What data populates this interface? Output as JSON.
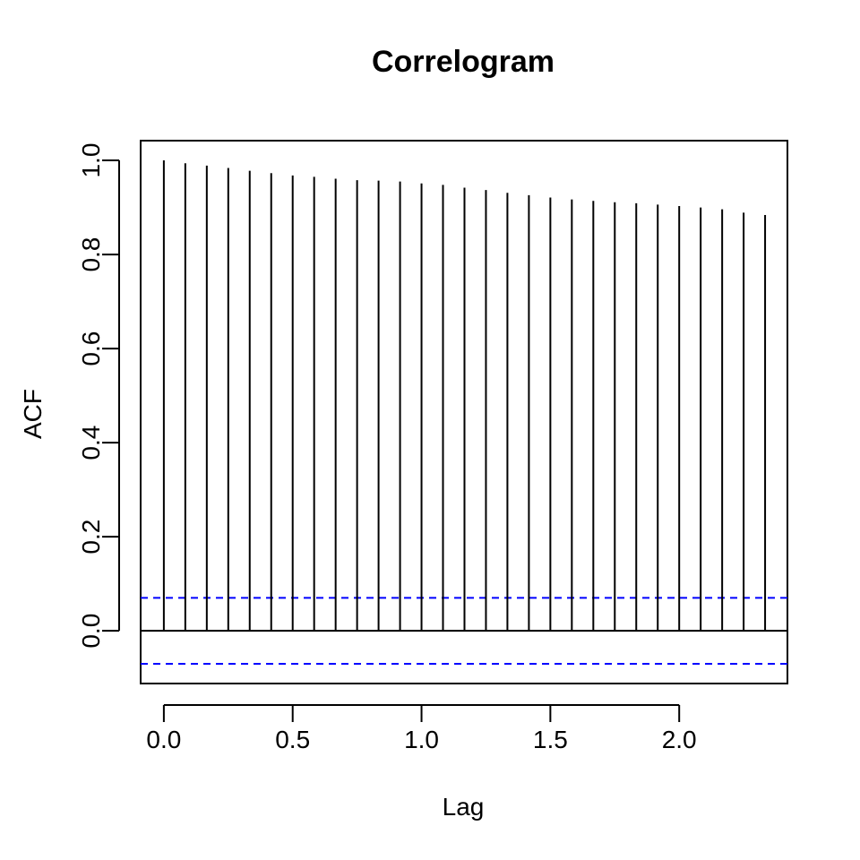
{
  "chart_data": {
    "type": "bar",
    "title": "Correlogram",
    "xlabel": "Lag",
    "ylabel": "ACF",
    "xlim": [
      -0.09,
      2.42
    ],
    "ylim": [
      -0.112,
      1.042
    ],
    "x_ticks": [
      0.0,
      0.5,
      1.0,
      1.5,
      2.0
    ],
    "x_tick_labels": [
      "0.0",
      "0.5",
      "1.0",
      "1.5",
      "2.0"
    ],
    "y_ticks": [
      0.0,
      0.2,
      0.4,
      0.6,
      0.8,
      1.0
    ],
    "y_tick_labels": [
      "0.0",
      "0.2",
      "0.4",
      "0.6",
      "0.8",
      "1.0"
    ],
    "grid": false,
    "spike_color": "#000000",
    "confidence_band_color": "#0000ff",
    "confidence_band": [
      -0.07,
      0.07
    ],
    "series": [
      {
        "x": [
          0.0,
          0.0833,
          0.1667,
          0.25,
          0.3333,
          0.4167,
          0.5,
          0.5833,
          0.6667,
          0.75,
          0.8333,
          0.9167,
          1.0,
          1.0833,
          1.1667,
          1.25,
          1.3333,
          1.4167,
          1.5,
          1.5833,
          1.6667,
          1.75,
          1.8333,
          1.9167,
          2.0,
          2.0833,
          2.1667,
          2.25,
          2.3333
        ],
        "values": [
          1.0,
          0.994,
          0.989,
          0.984,
          0.978,
          0.973,
          0.968,
          0.965,
          0.961,
          0.958,
          0.957,
          0.955,
          0.951,
          0.948,
          0.942,
          0.937,
          0.931,
          0.926,
          0.921,
          0.917,
          0.914,
          0.911,
          0.909,
          0.906,
          0.903,
          0.9,
          0.896,
          0.889,
          0.884
        ]
      }
    ]
  }
}
